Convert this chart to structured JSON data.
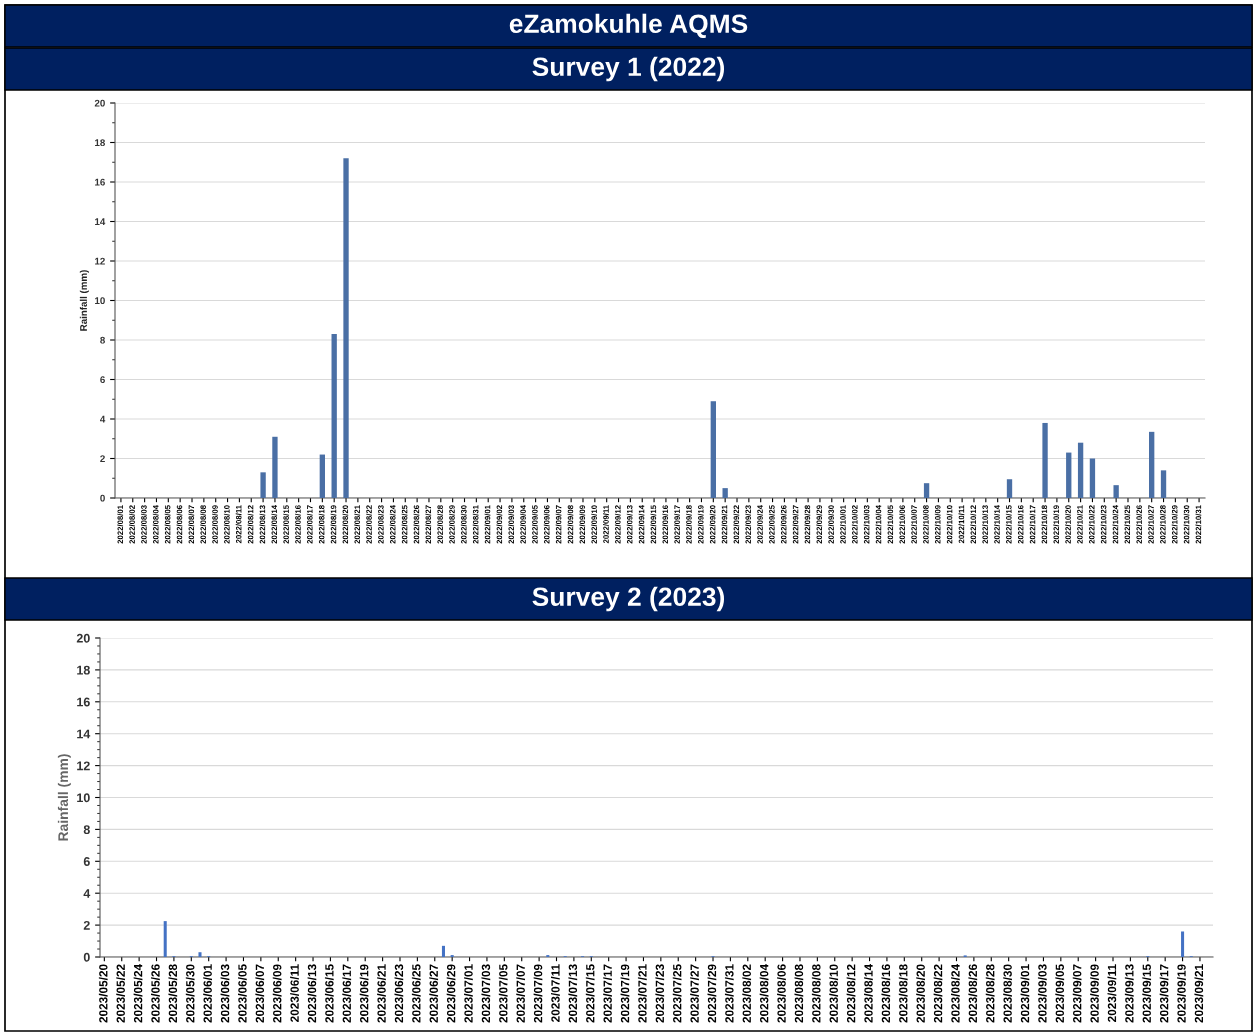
{
  "chart_data": [
    {
      "type": "bar",
      "title": "eZamokuhle AQMS",
      "subtitle": "Survey 1 (2022)",
      "ylabel": "Rainfall (mm)",
      "categories": [
        "2022/08/01",
        "2022/08/02",
        "2022/08/03",
        "2022/08/04",
        "2022/08/05",
        "2022/08/06",
        "2022/08/07",
        "2022/08/08",
        "2022/08/09",
        "2022/08/10",
        "2022/08/11",
        "2022/08/12",
        "2022/08/13",
        "2022/08/14",
        "2022/08/15",
        "2022/08/16",
        "2022/08/17",
        "2022/08/18",
        "2022/08/19",
        "2022/08/20",
        "2022/08/21",
        "2022/08/22",
        "2022/08/23",
        "2022/08/24",
        "2022/08/25",
        "2022/08/26",
        "2022/08/27",
        "2022/08/28",
        "2022/08/29",
        "2022/08/30",
        "2022/08/31",
        "2022/09/01",
        "2022/09/02",
        "2022/09/03",
        "2022/09/04",
        "2022/09/05",
        "2022/09/06",
        "2022/09/07",
        "2022/09/08",
        "2022/09/09",
        "2022/09/10",
        "2022/09/11",
        "2022/09/12",
        "2022/09/13",
        "2022/09/14",
        "2022/09/15",
        "2022/09/16",
        "2022/09/17",
        "2022/09/18",
        "2022/09/19",
        "2022/09/20",
        "2022/09/21",
        "2022/09/22",
        "2022/09/23",
        "2022/09/24",
        "2022/09/25",
        "2022/09/26",
        "2022/09/27",
        "2022/09/28",
        "2022/09/29",
        "2022/09/30",
        "2022/10/01",
        "2022/10/02",
        "2022/10/03",
        "2022/10/04",
        "2022/10/05",
        "2022/10/06",
        "2022/10/07",
        "2022/10/08",
        "2022/10/09",
        "2022/10/10",
        "2022/10/11",
        "2022/10/12",
        "2022/10/13",
        "2022/10/14",
        "2022/10/15",
        "2022/10/16",
        "2022/10/17",
        "2022/10/18",
        "2022/10/19",
        "2022/10/20",
        "2022/10/21",
        "2022/10/22",
        "2022/10/23",
        "2022/10/24",
        "2022/10/25",
        "2022/10/26",
        "2022/10/27",
        "2022/10/28",
        "2022/10/29",
        "2022/10/30",
        "2022/10/31"
      ],
      "values": [
        0,
        0,
        0,
        0,
        0,
        0,
        0,
        0,
        0,
        0,
        0,
        0,
        1.3,
        3.1,
        0,
        0,
        0,
        2.2,
        8.3,
        17.2,
        0,
        0,
        0,
        0,
        0,
        0,
        0,
        0,
        0,
        0,
        0,
        0,
        0,
        0,
        0,
        0,
        0,
        0,
        0,
        0,
        0,
        0,
        0,
        0,
        0,
        0,
        0,
        0,
        0,
        0,
        4.9,
        0.5,
        0,
        0,
        0,
        0,
        0,
        0,
        0,
        0,
        0,
        0,
        0,
        0,
        0,
        0,
        0,
        0,
        0.75,
        0,
        0,
        0,
        0,
        0,
        0,
        0.95,
        0,
        0,
        3.8,
        0,
        2.3,
        2.8,
        2.0,
        0,
        0.65,
        0,
        0,
        3.35,
        1.4,
        0,
        0,
        0
      ],
      "color": "#4a6fa5",
      "ylim": [
        0,
        20
      ],
      "yticks": [
        0,
        2,
        4,
        6,
        8,
        10,
        12,
        14,
        16,
        18,
        20
      ],
      "grid": "y"
    },
    {
      "type": "bar",
      "title": "Survey 2 (2023)",
      "ylabel": "Rainfall (mm)",
      "categories": [
        "2023/05/20",
        null,
        "2023/05/22",
        null,
        "2023/05/24",
        null,
        "2023/05/26",
        null,
        "2023/05/28",
        null,
        "2023/05/30",
        null,
        "2023/06/01",
        null,
        "2023/06/03",
        null,
        "2023/06/05",
        null,
        "2023/06/07",
        null,
        "2023/06/09",
        null,
        "2023/06/11",
        null,
        "2023/06/13",
        null,
        "2023/06/15",
        null,
        "2023/06/17",
        null,
        "2023/06/19",
        null,
        "2023/06/21",
        null,
        "2023/06/23",
        null,
        "2023/06/25",
        null,
        "2023/06/27",
        null,
        "2023/06/29",
        null,
        "2023/07/01",
        null,
        "2023/07/03",
        null,
        "2023/07/05",
        null,
        "2023/07/07",
        null,
        "2023/07/09",
        null,
        "2023/07/11",
        null,
        "2023/07/13",
        null,
        "2023/07/15",
        null,
        "2023/07/17",
        null,
        "2023/07/19",
        null,
        "2023/07/21",
        null,
        "2023/07/23",
        null,
        "2023/07/25",
        null,
        "2023/07/27",
        null,
        "2023/07/29",
        null,
        "2023/07/31",
        null,
        "2023/08/02",
        null,
        "2023/08/04",
        null,
        "2023/08/06",
        null,
        "2023/08/08",
        null,
        "2023/08/08",
        null,
        "2023/08/10",
        null,
        "2023/08/12",
        null,
        "2023/08/14",
        null,
        "2023/08/16",
        null,
        "2023/08/18",
        null,
        "2023/08/20",
        null,
        "2023/08/22",
        null,
        "2023/08/24",
        null,
        "2023/08/26",
        null,
        "2023/08/28",
        null,
        "2023/08/30",
        null,
        "2023/09/01",
        null,
        "2023/09/03",
        null,
        "2023/09/05",
        null,
        "2023/09/07",
        null,
        "2023/09/09",
        null,
        "2023/09/11",
        null,
        "2023/09/13",
        null,
        "2023/09/15",
        null,
        "2023/09/17",
        null,
        "2023/09/19",
        null,
        "2023/09/21",
        null
      ],
      "values": [
        0,
        0,
        0,
        0,
        0,
        0,
        0,
        2.25,
        0.05,
        0,
        0.05,
        0.3,
        0.05,
        0,
        0,
        0,
        0,
        0,
        0,
        0,
        0,
        0,
        0,
        0,
        0,
        0,
        0,
        0,
        0,
        0,
        0,
        0,
        0,
        0,
        0,
        0,
        0,
        0,
        0,
        0.7,
        0.12,
        0,
        0,
        0,
        0,
        0,
        0,
        0,
        0,
        0,
        0,
        0.12,
        0,
        0.05,
        0,
        0.05,
        0.05,
        0,
        0,
        0,
        0,
        0,
        0,
        0,
        0,
        0,
        0,
        0,
        0,
        0,
        0.05,
        0,
        0,
        0,
        0,
        0,
        0,
        0,
        0,
        0,
        0,
        0,
        0,
        0,
        0,
        0,
        0,
        0,
        0,
        0,
        0,
        0,
        0,
        0,
        0,
        0,
        0,
        0,
        0,
        0.1,
        0,
        0,
        0,
        0,
        0,
        0,
        0,
        0,
        0,
        0,
        0,
        0,
        0,
        0,
        0,
        0,
        0,
        0,
        0,
        0,
        0.05,
        0,
        0,
        0,
        1.6,
        0.05,
        0,
        0
      ],
      "color": "#4472c4",
      "ylim": [
        0,
        20
      ],
      "yticks": [
        0,
        2,
        4,
        6,
        8,
        10,
        12,
        14,
        16,
        18,
        20
      ],
      "grid": "y"
    }
  ]
}
